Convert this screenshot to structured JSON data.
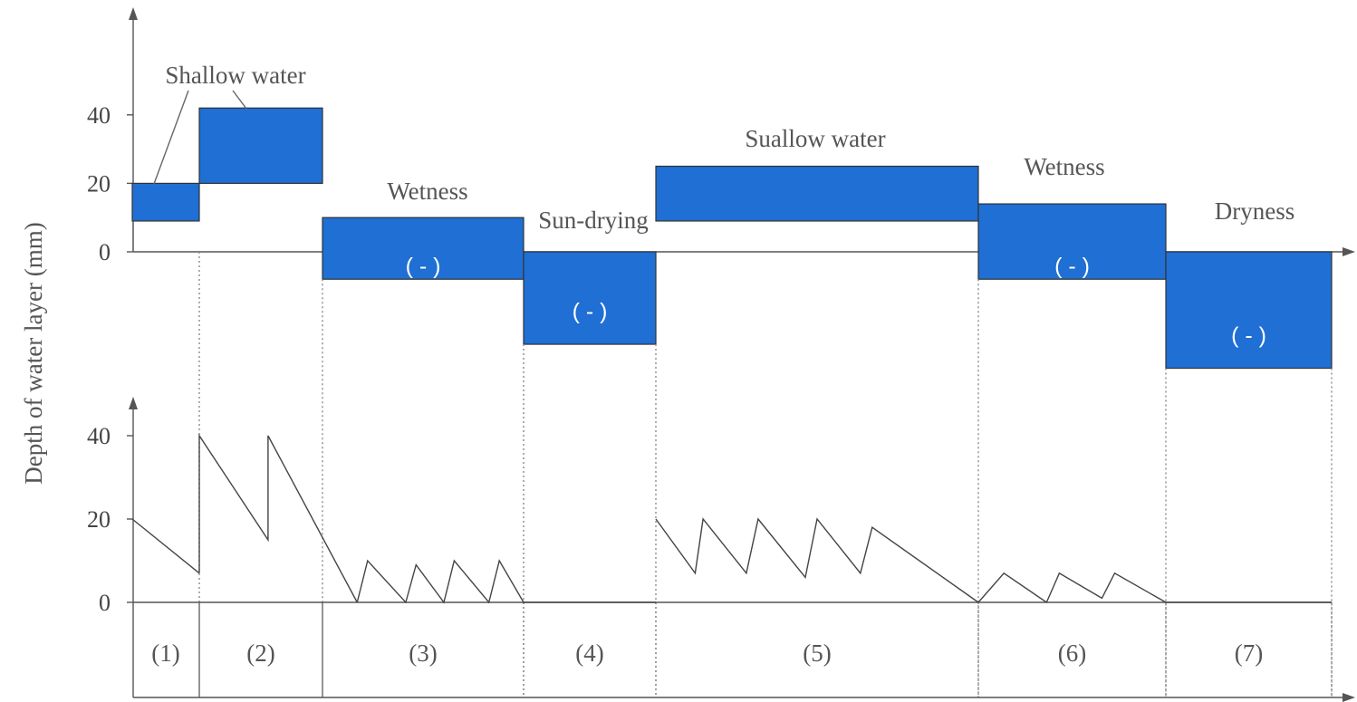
{
  "chart_data": [
    {
      "type": "bar",
      "panel": "upper",
      "ylabel": "Depth of water layer (mm)",
      "yticks": [
        "0",
        "20",
        "40"
      ],
      "ylim": [
        -55,
        70
      ],
      "bar_color": "#1f6fd4",
      "periods": [
        "(1)",
        "(2)",
        "(3)",
        "(4)",
        "(5)",
        "(6)",
        "(7)"
      ],
      "bars": [
        {
          "period": "(1)",
          "low": 9,
          "high": 20,
          "negative_label": ""
        },
        {
          "period": "(2)",
          "low": 20,
          "high": 42,
          "negative_label": ""
        },
        {
          "period": "(3)",
          "low": -8,
          "high": 10,
          "negative_label": "( - )"
        },
        {
          "period": "(4)",
          "low": -27,
          "high": 0,
          "negative_label": "( - )"
        },
        {
          "period": "(5)",
          "low": 9,
          "high": 25,
          "negative_label": ""
        },
        {
          "period": "(6)",
          "low": -8,
          "high": 14,
          "negative_label": "( - )"
        },
        {
          "period": "(7)",
          "low": -34,
          "high": 0,
          "negative_label": "( - )"
        }
      ],
      "stage_labels": [
        "Shallow water",
        "Wetness",
        "Sun-drying",
        "Suallow water",
        "Wetness",
        "Dryness"
      ]
    },
    {
      "type": "line",
      "panel": "lower",
      "yticks": [
        "0",
        "20",
        "40"
      ],
      "ylim": [
        0,
        50
      ],
      "series": [
        {
          "points": [
            [
              0,
              20
            ],
            [
              1,
              7
            ]
          ]
        },
        {
          "points": [
            [
              1,
              7
            ],
            [
              1,
              40
            ],
            [
              2.06,
              15
            ],
            [
              2.06,
              40
            ],
            [
              3.4,
              0
            ]
          ]
        },
        {
          "points": [
            [
              3.4,
              0
            ],
            [
              3.55,
              10
            ],
            [
              4.1,
              0
            ],
            [
              4.25,
              9
            ],
            [
              4.65,
              0
            ],
            [
              4.8,
              10
            ],
            [
              5.3,
              0
            ],
            [
              5.45,
              10
            ],
            [
              5.8,
              0
            ]
          ]
        },
        {
          "points": [
            [
              5.8,
              0
            ],
            [
              7.9,
              0
            ]
          ]
        },
        {
          "points": [
            [
              7.9,
              20
            ],
            [
              8.4,
              7
            ],
            [
              8.5,
              20
            ],
            [
              9.05,
              7
            ],
            [
              9.2,
              20
            ],
            [
              9.8,
              6
            ],
            [
              9.95,
              20
            ],
            [
              10.5,
              7
            ],
            [
              10.65,
              18
            ],
            [
              12.0,
              0
            ]
          ]
        },
        {
          "points": [
            [
              12.0,
              0
            ],
            [
              12.3,
              7
            ],
            [
              12.8,
              0
            ],
            [
              12.95,
              7
            ],
            [
              13.45,
              1
            ],
            [
              13.6,
              7
            ],
            [
              14.2,
              0
            ]
          ]
        },
        {
          "points": [
            [
              14.2,
              0
            ],
            [
              16.0,
              0
            ]
          ]
        }
      ]
    }
  ]
}
